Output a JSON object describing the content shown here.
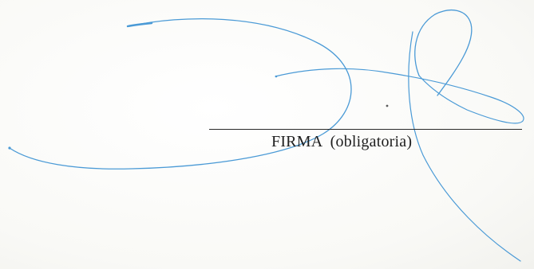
{
  "signature_block": {
    "caption": "FIRMA  (obligatoria)"
  },
  "colors": {
    "ink": "#3a8fd0",
    "line": "#2a2a2a",
    "text": "#1e1e1e"
  },
  "icons": {
    "signature": "handwritten-signature-icon"
  }
}
